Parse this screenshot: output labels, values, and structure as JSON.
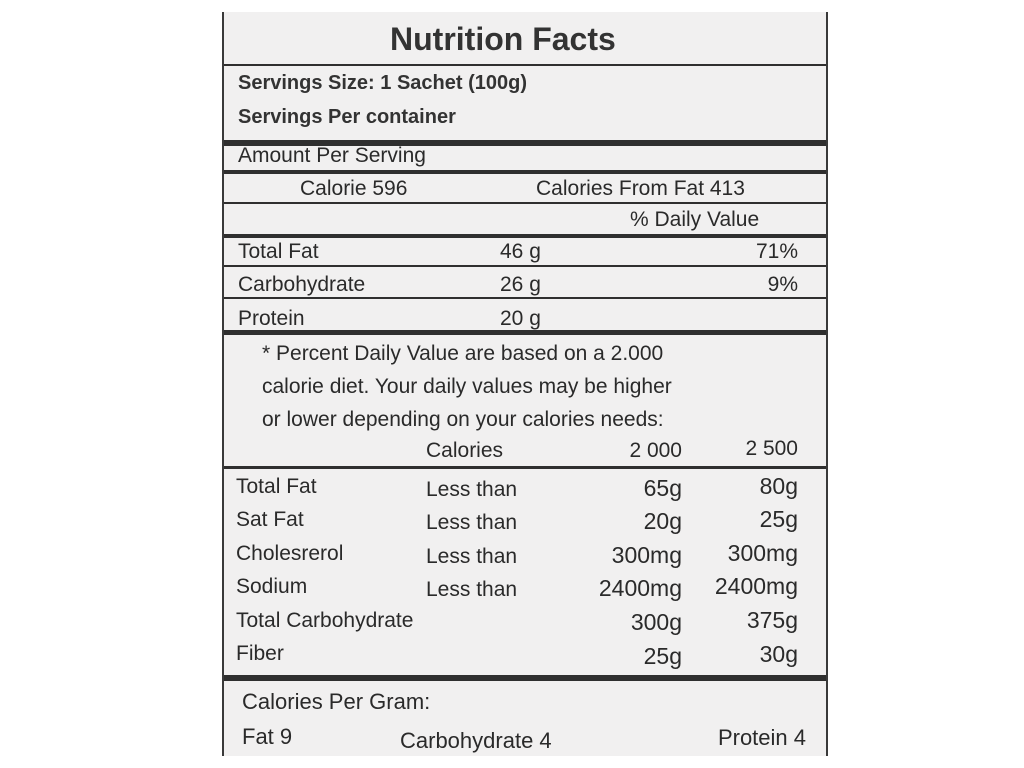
{
  "title": "Nutrition Facts",
  "serving_size": "Servings Size: 1 Sachet (100g)",
  "servings_per_container": "Servings Per container",
  "amount_per_serving": "Amount Per Serving",
  "calories": "Calorie 596",
  "calories_from_fat": "Calories From Fat 413",
  "daily_value_header": "% Daily Value",
  "nutrients": [
    {
      "name": "Total Fat",
      "amount": "46 g",
      "dv": "71%"
    },
    {
      "name": "Carbohydrate",
      "amount": "26 g",
      "dv": "9%"
    },
    {
      "name": "Protein",
      "amount": "20 g",
      "dv": ""
    }
  ],
  "footnote": {
    "line1": "* Percent Daily Value are based on a 2.000",
    "line2": "calorie diet. Your daily values may be higher",
    "line3": "or lower depending on your calories needs:"
  },
  "reference_header": {
    "label": "Calories",
    "col1": "2 000",
    "col2": "2 500"
  },
  "reference_rows": [
    {
      "name": "Total Fat",
      "qualifier": "Less than",
      "v1": "65g",
      "v2": "80g"
    },
    {
      "name": "Sat Fat",
      "qualifier": "Less than",
      "v1": "20g",
      "v2": "25g"
    },
    {
      "name": "Cholesrerol",
      "qualifier": "Less than",
      "v1": "300mg",
      "v2": "300mg"
    },
    {
      "name": "Sodium",
      "qualifier": "Less than",
      "v1": "2400mg",
      "v2": "2400mg"
    },
    {
      "name": "Total Carbohydrate",
      "qualifier": "",
      "v1": "300g",
      "v2": "375g"
    },
    {
      "name": "Fiber",
      "qualifier": "",
      "v1": "25g",
      "v2": "30g"
    }
  ],
  "calories_per_gram": {
    "heading": "Calories Per Gram:",
    "fat": "Fat 9",
    "carbohydrate": "Carbohydrate 4",
    "protein": "Protein 4"
  }
}
